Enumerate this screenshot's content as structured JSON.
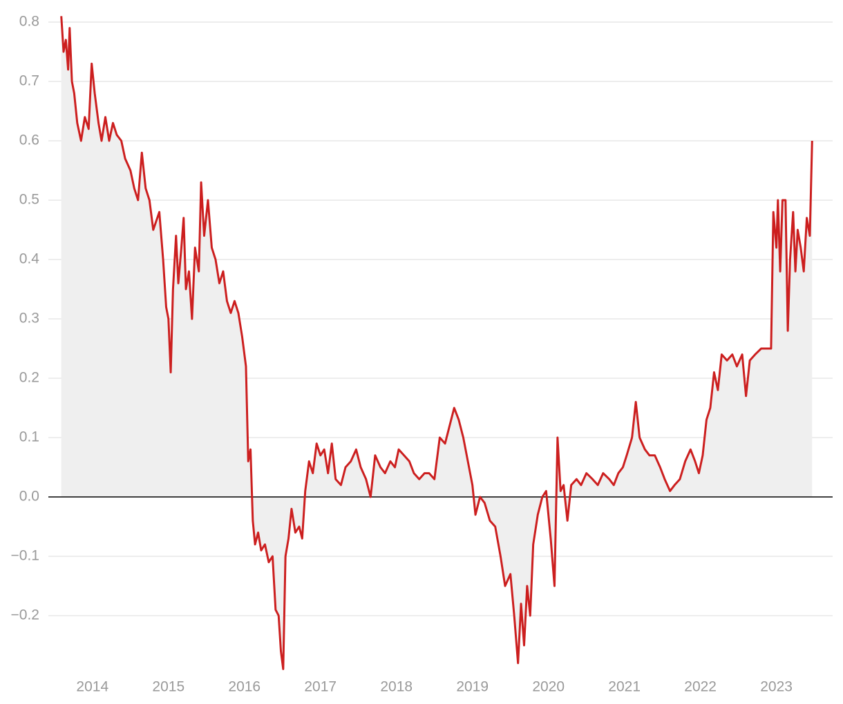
{
  "chart_data": {
    "type": "area",
    "color": "#cc1f1f",
    "area_color": "#efefef",
    "grid": true,
    "xlim": [
      2013.42,
      2023.74
    ],
    "xticks": [
      2014,
      2015,
      2016,
      2017,
      2018,
      2019,
      2020,
      2021,
      2022,
      2023
    ],
    "ylim": [
      -0.3,
      0.82
    ],
    "yticks": [
      {
        "value": -0.2,
        "label": "−0.2"
      },
      {
        "value": -0.1,
        "label": "−0.1"
      },
      {
        "value": 0,
        "label": "0.0"
      },
      0.1,
      0.2,
      0.3,
      0.4,
      0.5,
      0.6,
      0.7,
      0.8
    ],
    "x": [
      2013.59,
      2013.62,
      2013.65,
      2013.68,
      2013.7,
      2013.73,
      2013.76,
      2013.8,
      2013.85,
      2013.9,
      2013.95,
      2013.99,
      2014.03,
      2014.08,
      2014.12,
      2014.17,
      2014.22,
      2014.27,
      2014.32,
      2014.38,
      2014.43,
      2014.5,
      2014.55,
      2014.6,
      2014.65,
      2014.7,
      2014.75,
      2014.8,
      2014.88,
      2014.93,
      2014.97,
      2015.0,
      2015.03,
      2015.06,
      2015.1,
      2015.13,
      2015.17,
      2015.2,
      2015.23,
      2015.27,
      2015.31,
      2015.35,
      2015.4,
      2015.43,
      2015.47,
      2015.52,
      2015.57,
      2015.62,
      2015.67,
      2015.72,
      2015.77,
      2015.82,
      2015.87,
      2015.92,
      2015.97,
      2016.02,
      2016.05,
      2016.08,
      2016.11,
      2016.14,
      2016.18,
      2016.22,
      2016.27,
      2016.32,
      2016.37,
      2016.41,
      2016.45,
      2016.48,
      2016.51,
      2016.54,
      2016.58,
      2016.62,
      2016.67,
      2016.72,
      2016.76,
      2016.8,
      2016.85,
      2016.9,
      2016.95,
      2017.0,
      2017.05,
      2017.1,
      2017.15,
      2017.2,
      2017.27,
      2017.33,
      2017.4,
      2017.47,
      2017.53,
      2017.6,
      2017.66,
      2017.72,
      2017.79,
      2017.85,
      2017.92,
      2017.98,
      2018.03,
      2018.1,
      2018.17,
      2018.23,
      2018.3,
      2018.37,
      2018.43,
      2018.5,
      2018.57,
      2018.64,
      2018.7,
      2018.76,
      2018.82,
      2018.88,
      2018.94,
      2019.0,
      2019.04,
      2019.1,
      2019.16,
      2019.23,
      2019.3,
      2019.37,
      2019.43,
      2019.5,
      2019.55,
      2019.6,
      2019.64,
      2019.68,
      2019.72,
      2019.76,
      2019.8,
      2019.86,
      2019.92,
      2019.97,
      2020.03,
      2020.08,
      2020.12,
      2020.16,
      2020.2,
      2020.25,
      2020.3,
      2020.37,
      2020.43,
      2020.5,
      2020.58,
      2020.65,
      2020.72,
      2020.8,
      2020.86,
      2020.92,
      2020.98,
      2021.03,
      2021.1,
      2021.15,
      2021.2,
      2021.27,
      2021.33,
      2021.4,
      2021.47,
      2021.53,
      2021.6,
      2021.66,
      2021.73,
      2021.8,
      2021.87,
      2021.93,
      2021.98,
      2022.03,
      2022.08,
      2022.13,
      2022.18,
      2022.23,
      2022.28,
      2022.35,
      2022.42,
      2022.48,
      2022.55,
      2022.6,
      2022.65,
      2022.72,
      2022.8,
      2022.87,
      2022.93,
      2022.96,
      2023.0,
      2023.02,
      2023.05,
      2023.08,
      2023.12,
      2023.15,
      2023.18,
      2023.22,
      2023.25,
      2023.28,
      2023.32,
      2023.36,
      2023.4,
      2023.44,
      2023.47
    ],
    "values": [
      0.81,
      0.75,
      0.77,
      0.72,
      0.79,
      0.7,
      0.68,
      0.63,
      0.6,
      0.64,
      0.62,
      0.73,
      0.68,
      0.63,
      0.6,
      0.64,
      0.6,
      0.63,
      0.61,
      0.6,
      0.57,
      0.55,
      0.52,
      0.5,
      0.58,
      0.52,
      0.5,
      0.45,
      0.48,
      0.4,
      0.32,
      0.3,
      0.21,
      0.35,
      0.44,
      0.36,
      0.42,
      0.47,
      0.35,
      0.38,
      0.3,
      0.42,
      0.38,
      0.53,
      0.44,
      0.5,
      0.42,
      0.4,
      0.36,
      0.38,
      0.33,
      0.31,
      0.33,
      0.31,
      0.27,
      0.22,
      0.06,
      0.08,
      -0.04,
      -0.08,
      -0.06,
      -0.09,
      -0.08,
      -0.11,
      -0.1,
      -0.19,
      -0.2,
      -0.26,
      -0.29,
      -0.1,
      -0.07,
      -0.02,
      -0.06,
      -0.05,
      -0.07,
      0.01,
      0.06,
      0.04,
      0.09,
      0.07,
      0.08,
      0.04,
      0.09,
      0.03,
      0.02,
      0.05,
      0.06,
      0.08,
      0.05,
      0.03,
      0.0,
      0.07,
      0.05,
      0.04,
      0.06,
      0.05,
      0.08,
      0.07,
      0.06,
      0.04,
      0.03,
      0.04,
      0.04,
      0.03,
      0.1,
      0.09,
      0.12,
      0.15,
      0.13,
      0.1,
      0.06,
      0.02,
      -0.03,
      0.0,
      -0.01,
      -0.04,
      -0.05,
      -0.1,
      -0.15,
      -0.13,
      -0.2,
      -0.28,
      -0.18,
      -0.25,
      -0.15,
      -0.2,
      -0.08,
      -0.03,
      0.0,
      0.01,
      -0.07,
      -0.15,
      0.1,
      0.01,
      0.02,
      -0.04,
      0.02,
      0.03,
      0.02,
      0.04,
      0.03,
      0.02,
      0.04,
      0.03,
      0.02,
      0.04,
      0.05,
      0.07,
      0.1,
      0.16,
      0.1,
      0.08,
      0.07,
      0.07,
      0.05,
      0.03,
      0.01,
      0.02,
      0.03,
      0.06,
      0.08,
      0.06,
      0.04,
      0.07,
      0.13,
      0.15,
      0.21,
      0.18,
      0.24,
      0.23,
      0.24,
      0.22,
      0.24,
      0.17,
      0.23,
      0.24,
      0.25,
      0.25,
      0.25,
      0.48,
      0.42,
      0.5,
      0.38,
      0.5,
      0.5,
      0.28,
      0.4,
      0.48,
      0.38,
      0.45,
      0.42,
      0.38,
      0.47,
      0.44,
      0.6
    ]
  }
}
